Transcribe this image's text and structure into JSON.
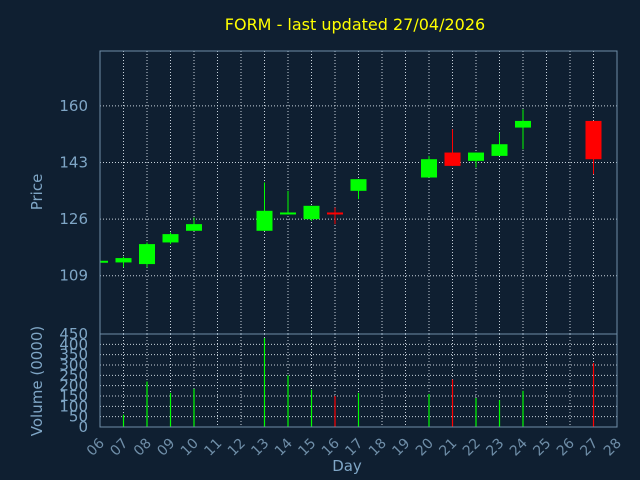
{
  "chart_data": [
    {
      "type": "candlestick",
      "title": "FORM - last updated 27/04/2026",
      "ylabel": "Price",
      "ylim": [
        91.5,
        176.5
      ],
      "yticks": [
        109,
        126,
        143,
        160
      ],
      "grid": true,
      "candles": [
        {
          "day": "06",
          "open": 113.5,
          "close": 113.5,
          "high": 113.5,
          "low": 113.5
        },
        {
          "day": "07",
          "open": 113.0,
          "close": 114.3,
          "high": 114.7,
          "low": 111.5
        },
        {
          "day": "08",
          "open": 112.5,
          "close": 118.5,
          "high": 119.0,
          "low": 111.5
        },
        {
          "day": "09",
          "open": 119.0,
          "close": 121.5,
          "high": 122.0,
          "low": 118.5
        },
        {
          "day": "10",
          "open": 122.5,
          "close": 124.5,
          "high": 126.5,
          "low": 122.5
        },
        {
          "day": "13",
          "open": 122.5,
          "close": 128.5,
          "high": 137.0,
          "low": 122.5
        },
        {
          "day": "14",
          "open": 127.5,
          "close": 128.0,
          "high": 134.5,
          "low": 127.5
        },
        {
          "day": "15",
          "open": 126.0,
          "close": 130.0,
          "high": 130.0,
          "low": 125.5
        },
        {
          "day": "16",
          "open": 128.0,
          "close": 127.5,
          "high": 129.5,
          "low": 124.5
        },
        {
          "day": "17",
          "open": 134.5,
          "close": 138.0,
          "high": 138.0,
          "low": 132.0
        },
        {
          "day": "20",
          "open": 138.5,
          "close": 144.0,
          "high": 145.0,
          "low": 138.5
        },
        {
          "day": "21",
          "open": 146.0,
          "close": 142.0,
          "high": 153.0,
          "low": 142.0
        },
        {
          "day": "22",
          "open": 143.5,
          "close": 146.0,
          "high": 146.0,
          "low": 141.5
        },
        {
          "day": "23",
          "open": 145.0,
          "close": 148.5,
          "high": 152.0,
          "low": 145.0
        },
        {
          "day": "24",
          "open": 153.5,
          "close": 155.5,
          "high": 159.0,
          "low": 147.0
        },
        {
          "day": "27",
          "open": 155.5,
          "close": 144.0,
          "high": 155.5,
          "low": 139.5
        }
      ]
    },
    {
      "type": "bar",
      "xlabel": "Day",
      "ylabel": "Volume (0000)",
      "ylim": [
        0,
        450
      ],
      "yticks": [
        0,
        50,
        100,
        150,
        200,
        250,
        300,
        350,
        400,
        450
      ],
      "grid": true,
      "categories": [
        "06",
        "07",
        "08",
        "09",
        "10",
        "11",
        "12",
        "13",
        "14",
        "15",
        "16",
        "17",
        "18",
        "19",
        "20",
        "21",
        "22",
        "23",
        "24",
        "25",
        "26",
        "27",
        "28"
      ],
      "volumes": [
        {
          "day": "07",
          "value": 60,
          "direction": "up"
        },
        {
          "day": "08",
          "value": 220,
          "direction": "up"
        },
        {
          "day": "09",
          "value": 165,
          "direction": "up"
        },
        {
          "day": "10",
          "value": 185,
          "direction": "up"
        },
        {
          "day": "13",
          "value": 430,
          "direction": "up"
        },
        {
          "day": "14",
          "value": 250,
          "direction": "up"
        },
        {
          "day": "15",
          "value": 180,
          "direction": "up"
        },
        {
          "day": "16",
          "value": 150,
          "direction": "down"
        },
        {
          "day": "17",
          "value": 165,
          "direction": "up"
        },
        {
          "day": "20",
          "value": 160,
          "direction": "up"
        },
        {
          "day": "21",
          "value": 230,
          "direction": "down"
        },
        {
          "day": "22",
          "value": 140,
          "direction": "up"
        },
        {
          "day": "23",
          "value": 130,
          "direction": "up"
        },
        {
          "day": "24",
          "value": 175,
          "direction": "up"
        },
        {
          "day": "27",
          "value": 310,
          "direction": "down"
        }
      ]
    }
  ],
  "colors": {
    "background": "#0f1f31",
    "frame": "#6f8ea8",
    "grid": "#c8d2dc",
    "up": "#00ff00",
    "down": "#ff0000",
    "title": "#ffff00",
    "text": "#7fa6c6"
  }
}
